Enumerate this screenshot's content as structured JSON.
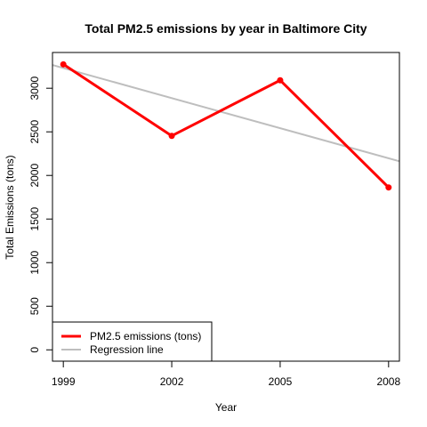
{
  "chart_data": {
    "type": "line",
    "title": "Total PM2.5 emissions by year in Baltimore City",
    "xlabel": "Year",
    "ylabel": "Total Emissions (tons)",
    "xlim": [
      1998.7,
      2008.3
    ],
    "ylim": [
      -130,
      3410
    ],
    "x_ticks": [
      "1999",
      "2002",
      "2005",
      "2008"
    ],
    "y_ticks": [
      "0",
      "500",
      "1000",
      "1500",
      "2000",
      "2500",
      "3000"
    ],
    "grid": false,
    "legend_position": "bottom-left",
    "series": [
      {
        "name": "PM2.5 emissions (tons)",
        "color": "#ff0000",
        "x": [
          1999,
          2002,
          2005,
          2008
        ],
        "y": [
          3274.18,
          2453.92,
          3091.35,
          1862.28
        ]
      },
      {
        "name": "Regression line",
        "type": "regression",
        "color": "#bebebe",
        "intercept": 3231.7,
        "slope": -115.0,
        "x_origin": 1999
      }
    ]
  }
}
